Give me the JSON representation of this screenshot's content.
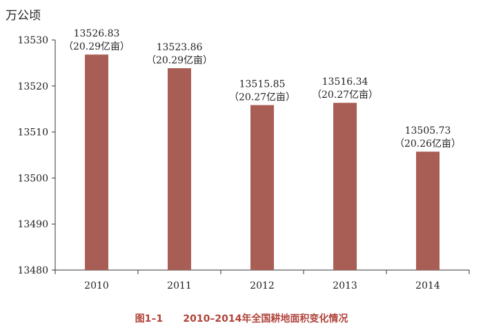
{
  "unit_label": "万公顷",
  "caption": {
    "number": "图1–1",
    "title": "2010–2014年全国耕地面积变化情况"
  },
  "colors": {
    "bar": "#a95e55",
    "axis": "#333333",
    "text": "#222222",
    "caption": "#b0433a"
  },
  "chart_data": {
    "type": "bar",
    "categories": [
      "2010",
      "2011",
      "2012",
      "2013",
      "2014"
    ],
    "values": [
      13526.83,
      13523.86,
      13515.85,
      13516.34,
      13505.73
    ],
    "value_labels": [
      "13526.83",
      "13523.86",
      "13515.85",
      "13516.34",
      "13505.73"
    ],
    "secondary_labels": [
      "（20.29亿亩）",
      "（20.29亿亩）",
      "（20.27亿亩）",
      "（20.27亿亩）",
      "（20.26亿亩）"
    ],
    "ylim": [
      13480,
      13530
    ],
    "yticks": [
      13480,
      13490,
      13500,
      13510,
      13520,
      13530
    ],
    "ylabel": "万公顷",
    "grid": false
  }
}
